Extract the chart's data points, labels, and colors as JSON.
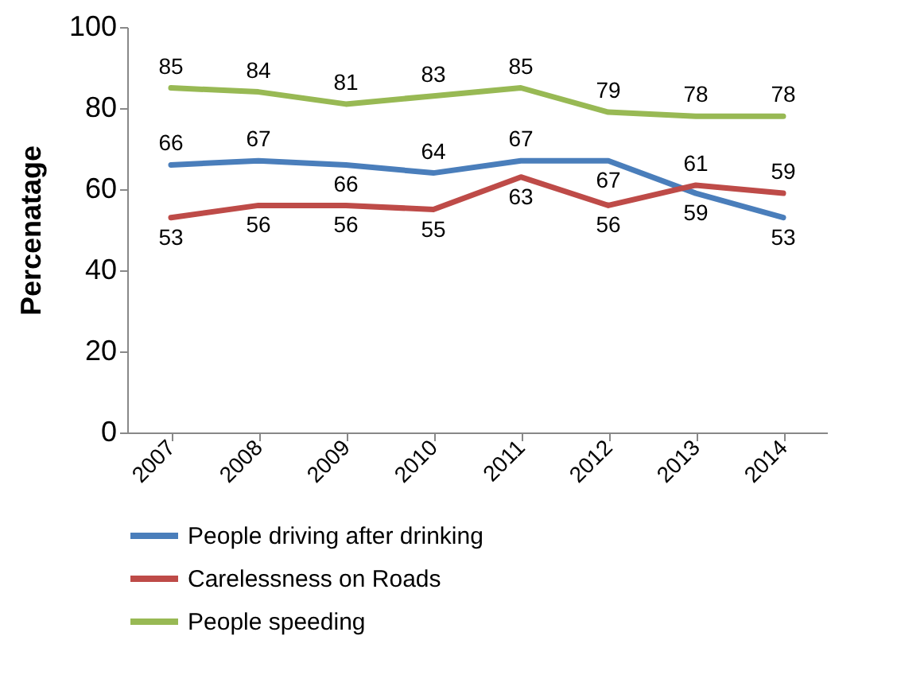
{
  "chart_data": {
    "type": "line",
    "ylabel": "Percenatage",
    "categories": [
      "2007",
      "2008",
      "2009",
      "2010",
      "2011",
      "2012",
      "2013",
      "2014"
    ],
    "series": [
      {
        "name": "People driving after drinking",
        "color": "#4a7ebb",
        "values": [
          66,
          67,
          66,
          64,
          67,
          67,
          59,
          53
        ]
      },
      {
        "name": "Carelessness on Roads",
        "color": "#be4b48",
        "values": [
          53,
          56,
          56,
          55,
          63,
          56,
          61,
          59
        ]
      },
      {
        "name": "People speeding",
        "color": "#98b954",
        "values": [
          85,
          84,
          81,
          83,
          85,
          79,
          78,
          78
        ]
      }
    ],
    "ylim": [
      0,
      100
    ],
    "yticks": [
      0,
      20,
      40,
      60,
      80,
      100
    ],
    "grid": false,
    "legend": "bottom",
    "data_labels": true,
    "marker": "none",
    "line_style": "solid"
  }
}
